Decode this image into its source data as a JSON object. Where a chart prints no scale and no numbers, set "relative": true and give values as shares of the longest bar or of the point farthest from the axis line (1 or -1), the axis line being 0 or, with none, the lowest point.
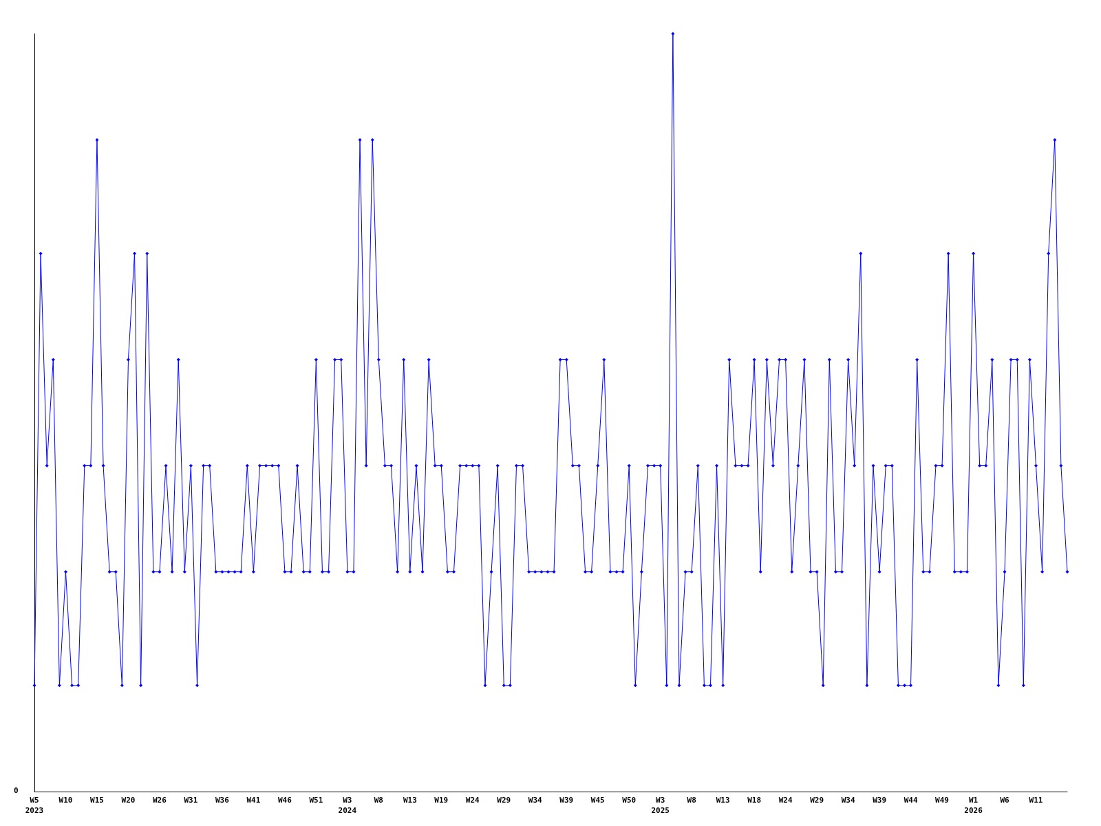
{
  "chart_data": {
    "type": "line",
    "relative": true,
    "marker": "diamond",
    "line_style": "solid",
    "annotations": [
      "0"
    ],
    "categories": [
      "W5\n2023",
      null,
      null,
      null,
      null,
      "W10",
      null,
      null,
      null,
      null,
      "W15",
      null,
      null,
      null,
      null,
      "W20",
      null,
      null,
      null,
      null,
      "W26",
      null,
      null,
      null,
      null,
      "W31",
      null,
      null,
      null,
      null,
      "W36",
      null,
      null,
      null,
      null,
      "W41",
      null,
      null,
      null,
      null,
      "W46",
      null,
      null,
      null,
      null,
      "W51",
      null,
      null,
      null,
      null,
      "W3\n2024",
      null,
      null,
      null,
      null,
      "W8",
      null,
      null,
      null,
      null,
      "W13",
      null,
      null,
      null,
      null,
      "W19",
      null,
      null,
      null,
      null,
      "W24",
      null,
      null,
      null,
      null,
      "W29",
      null,
      null,
      null,
      null,
      "W34",
      null,
      null,
      null,
      null,
      "W39",
      null,
      null,
      null,
      null,
      "W45",
      null,
      null,
      null,
      null,
      "W50",
      null,
      null,
      null,
      null,
      "W3\n2025",
      null,
      null,
      null,
      null,
      "W8",
      null,
      null,
      null,
      null,
      "W13",
      null,
      null,
      null,
      null,
      "W18",
      null,
      null,
      null,
      null,
      "W24",
      null,
      null,
      null,
      null,
      "W29",
      null,
      null,
      null,
      null,
      "W34",
      null,
      null,
      null,
      null,
      "W39",
      null,
      null,
      null,
      null,
      "W44",
      null,
      null,
      null,
      null,
      "W49",
      null,
      null,
      null,
      null,
      "W1\n2026",
      null,
      null,
      null,
      null,
      "W6",
      null,
      null,
      null,
      null,
      "W11",
      null,
      null,
      null,
      null,
      null
    ],
    "series": [
      {
        "color": "#0000ff",
        "values": [
          0.14,
          0.71,
          0.43,
          0.57,
          0.14,
          0.29,
          0.14,
          0.14,
          0.43,
          0.43,
          0.86,
          0.43,
          0.29,
          0.29,
          0.14,
          0.57,
          0.71,
          0.14,
          0.71,
          0.29,
          0.29,
          0.43,
          0.29,
          0.57,
          0.29,
          0.43,
          0.14,
          0.43,
          0.43,
          0.29,
          0.29,
          0.29,
          0.29,
          0.29,
          0.43,
          0.29,
          0.43,
          0.43,
          0.43,
          0.43,
          0.29,
          0.29,
          0.43,
          0.29,
          0.29,
          0.57,
          0.29,
          0.29,
          0.57,
          0.57,
          0.29,
          0.29,
          0.86,
          0.43,
          0.86,
          0.57,
          0.43,
          0.43,
          0.29,
          0.57,
          0.29,
          0.43,
          0.29,
          0.57,
          0.43,
          0.43,
          0.29,
          0.29,
          0.43,
          0.43,
          0.43,
          0.43,
          0.14,
          0.29,
          0.43,
          0.14,
          0.14,
          0.43,
          0.43,
          0.29,
          0.29,
          0.29,
          0.29,
          0.29,
          0.57,
          0.57,
          0.43,
          0.43,
          0.29,
          0.29,
          0.43,
          0.57,
          0.29,
          0.29,
          0.29,
          0.43,
          0.14,
          0.29,
          0.43,
          0.43,
          0.43,
          0.14,
          1,
          0.14,
          0.29,
          0.29,
          0.43,
          0.14,
          0.14,
          0.43,
          0.14,
          0.57,
          0.43,
          0.43,
          0.43,
          0.57,
          0.29,
          0.57,
          0.43,
          0.57,
          0.57,
          0.29,
          0.43,
          0.57,
          0.29,
          0.29,
          0.14,
          0.57,
          0.29,
          0.29,
          0.57,
          0.43,
          0.71,
          0.14,
          0.43,
          0.29,
          0.43,
          0.43,
          0.14,
          0.14,
          0.14,
          0.57,
          0.29,
          0.29,
          0.43,
          0.43,
          0.71,
          0.29,
          0.29,
          0.29,
          0.71,
          0.43,
          0.43,
          0.57,
          0.14,
          0.29,
          0.57,
          0.57,
          0.14,
          0.57,
          0.43,
          0.29,
          0.71,
          0.86,
          0.43,
          0.29
        ]
      }
    ]
  }
}
